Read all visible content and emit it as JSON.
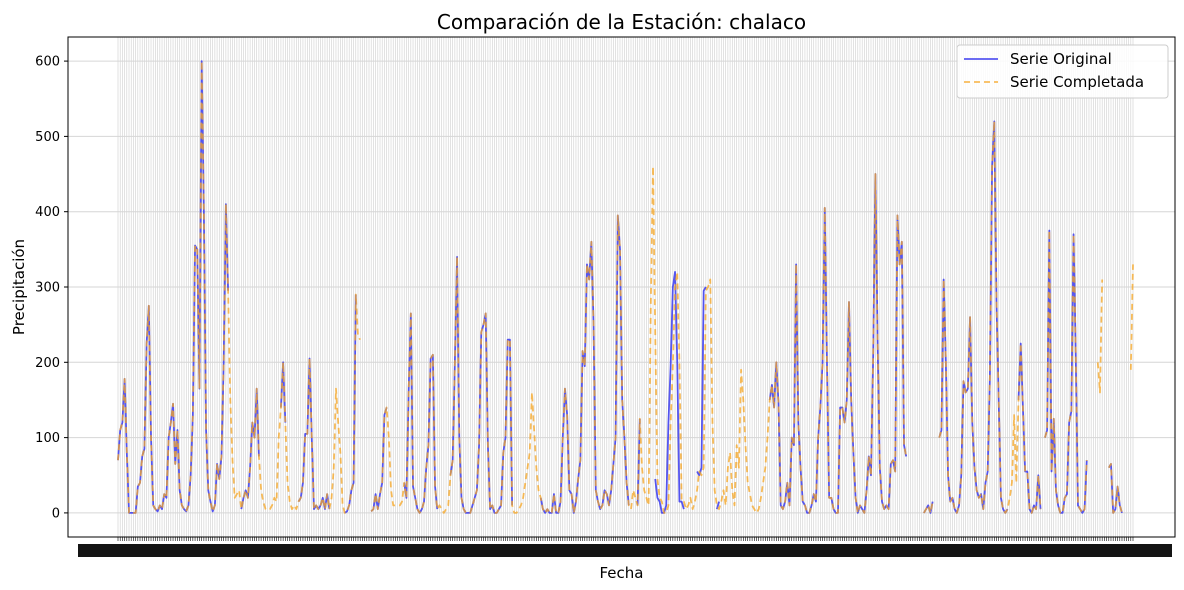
{
  "chart_data": {
    "type": "line",
    "title": "Comparación de la Estación: chalaco",
    "xlabel": "Fecha",
    "ylabel": "Precipitación",
    "ylim": [
      -32,
      632
    ],
    "yticks": [
      0,
      100,
      200,
      300,
      400,
      500,
      600
    ],
    "x_tick_labels_note": "",
    "grid": true,
    "legend_position": "top-right",
    "series": [
      {
        "name": "Serie Original",
        "color": "#3a3aee",
        "style": "solid",
        "values": [
          70,
          110,
          120,
          178,
          80,
          0,
          0,
          0,
          0,
          35,
          40,
          75,
          85,
          225,
          275,
          100,
          10,
          5,
          2,
          10,
          5,
          25,
          20,
          100,
          120,
          145,
          65,
          110,
          30,
          10,
          5,
          2,
          10,
          50,
          130,
          355,
          350,
          165,
          600,
          400,
          110,
          30,
          15,
          2,
          10,
          65,
          45,
          75,
          200,
          410,
          295,
          null,
          null,
          null,
          null,
          null,
          5,
          20,
          30,
          20,
          60,
          120,
          100,
          165,
          75,
          null,
          null,
          null,
          null,
          null,
          null,
          null,
          null,
          null,
          140,
          200,
          120,
          null,
          null,
          null,
          null,
          null,
          15,
          20,
          40,
          105,
          105,
          205,
          100,
          5,
          10,
          5,
          10,
          20,
          5,
          25,
          5,
          null,
          null,
          null,
          null,
          null,
          null,
          0,
          2,
          10,
          30,
          40,
          290,
          null,
          null,
          null,
          null,
          10,
          null,
          2,
          5,
          25,
          5,
          25,
          40,
          130,
          140,
          null,
          null,
          null,
          null,
          null,
          null,
          null,
          40,
          20,
          160,
          265,
          35,
          20,
          5,
          0,
          5,
          15,
          60,
          90,
          205,
          210,
          35,
          5,
          null,
          null,
          null,
          null,
          null,
          50,
          70,
          200,
          340,
          100,
          20,
          5,
          0,
          0,
          0,
          10,
          20,
          30,
          90,
          240,
          250,
          265,
          90,
          5,
          10,
          0,
          0,
          5,
          10,
          80,
          100,
          230,
          230,
          10,
          null,
          null,
          null,
          null,
          null,
          null,
          null,
          null,
          null,
          null,
          null,
          null,
          20,
          5,
          0,
          5,
          0,
          0,
          25,
          0,
          0,
          15,
          100,
          165,
          130,
          30,
          25,
          0,
          15,
          45,
          70,
          215,
          195,
          330,
          310,
          360,
          250,
          30,
          15,
          5,
          10,
          30,
          25,
          10,
          30,
          65,
          100,
          395,
          350,
          150,
          100,
          40,
          10,
          null,
          null,
          null,
          10,
          125,
          null,
          null,
          null,
          null,
          null,
          null,
          45,
          20,
          15,
          0,
          0,
          10,
          120,
          195,
          300,
          320,
          200,
          15,
          15,
          5,
          null,
          null,
          null,
          null,
          null,
          55,
          50,
          60,
          295,
          300,
          null,
          null,
          null,
          null,
          5,
          15,
          null,
          null,
          null,
          null,
          null,
          null,
          null,
          null,
          null,
          null,
          null,
          null,
          null,
          null,
          null,
          null,
          null,
          null,
          null,
          null,
          null,
          null,
          150,
          170,
          140,
          200,
          145,
          10,
          5,
          15,
          40,
          10,
          100,
          90,
          330,
          120,
          60,
          15,
          10,
          0,
          0,
          10,
          25,
          15,
          100,
          140,
          200,
          405,
          200,
          20,
          20,
          5,
          0,
          0,
          140,
          140,
          120,
          150,
          280,
          150,
          80,
          20,
          0,
          10,
          5,
          0,
          30,
          75,
          50,
          210,
          450,
          230,
          60,
          15,
          5,
          10,
          5,
          65,
          70,
          55,
          395,
          330,
          360,
          90,
          75,
          null,
          null,
          null,
          null,
          null,
          null,
          null,
          0,
          5,
          10,
          0,
          15,
          null,
          null,
          100,
          110,
          310,
          200,
          50,
          15,
          20,
          5,
          0,
          10,
          50,
          175,
          160,
          165,
          260,
          120,
          60,
          30,
          20,
          25,
          5,
          40,
          55,
          180,
          460,
          520,
          280,
          150,
          20,
          5,
          0,
          5,
          null,
          null,
          null,
          null,
          150,
          225,
          140,
          55,
          55,
          5,
          0,
          10,
          5,
          50,
          5,
          null,
          100,
          110,
          375,
          55,
          125,
          30,
          10,
          0,
          0,
          20,
          25,
          120,
          135,
          370,
          210,
          10,
          5,
          0,
          5,
          70,
          null,
          null,
          null,
          null,
          null,
          null,
          null,
          null,
          null,
          60,
          65,
          0,
          5,
          35,
          10,
          0
        ]
      },
      {
        "name": "Serie Completada",
        "color": "#f5a623",
        "style": "dashed",
        "values": [
          70,
          110,
          120,
          178,
          80,
          0,
          0,
          0,
          0,
          35,
          40,
          75,
          85,
          225,
          275,
          100,
          10,
          5,
          2,
          10,
          5,
          25,
          20,
          100,
          120,
          145,
          65,
          110,
          30,
          10,
          5,
          2,
          10,
          50,
          130,
          355,
          350,
          165,
          600,
          400,
          110,
          30,
          15,
          2,
          10,
          65,
          45,
          75,
          200,
          410,
          295,
          150,
          70,
          20,
          25,
          30,
          5,
          20,
          30,
          20,
          60,
          120,
          100,
          165,
          75,
          30,
          15,
          5,
          5,
          5,
          10,
          20,
          15,
          100,
          140,
          200,
          120,
          40,
          15,
          5,
          10,
          5,
          15,
          20,
          40,
          105,
          105,
          205,
          100,
          5,
          10,
          5,
          10,
          20,
          5,
          25,
          5,
          20,
          60,
          165,
          120,
          80,
          10,
          0,
          2,
          10,
          30,
          40,
          290,
          235,
          230,
          null,
          null,
          10,
          null,
          2,
          5,
          25,
          5,
          25,
          40,
          130,
          140,
          100,
          30,
          10,
          10,
          10,
          10,
          15,
          40,
          20,
          160,
          265,
          35,
          20,
          5,
          0,
          5,
          15,
          60,
          90,
          205,
          210,
          35,
          5,
          10,
          5,
          0,
          5,
          10,
          50,
          70,
          200,
          340,
          100,
          20,
          5,
          0,
          0,
          0,
          10,
          20,
          30,
          90,
          240,
          250,
          265,
          90,
          5,
          10,
          0,
          0,
          5,
          10,
          80,
          100,
          230,
          230,
          10,
          0,
          0,
          5,
          10,
          20,
          40,
          60,
          80,
          160,
          110,
          60,
          30,
          20,
          5,
          0,
          5,
          0,
          0,
          25,
          0,
          0,
          15,
          100,
          165,
          130,
          30,
          25,
          0,
          15,
          45,
          70,
          215,
          195,
          330,
          310,
          360,
          250,
          30,
          15,
          5,
          10,
          30,
          25,
          10,
          30,
          65,
          100,
          395,
          350,
          150,
          100,
          40,
          10,
          5,
          30,
          20,
          10,
          125,
          60,
          30,
          20,
          10,
          280,
          460,
          240,
          45,
          20,
          15,
          0,
          0,
          10,
          120,
          195,
          300,
          320,
          200,
          15,
          15,
          5,
          10,
          20,
          5,
          15,
          30,
          55,
          50,
          60,
          295,
          300,
          310,
          120,
          30,
          10,
          5,
          15,
          30,
          10,
          60,
          80,
          30,
          10,
          90,
          60,
          190,
          150,
          90,
          40,
          25,
          10,
          5,
          0,
          5,
          20,
          40,
          60,
          100,
          150,
          170,
          140,
          200,
          145,
          10,
          5,
          15,
          40,
          10,
          100,
          90,
          330,
          120,
          60,
          15,
          10,
          0,
          0,
          10,
          25,
          15,
          100,
          140,
          200,
          405,
          200,
          20,
          20,
          5,
          0,
          0,
          140,
          140,
          120,
          150,
          280,
          150,
          80,
          20,
          0,
          10,
          5,
          0,
          30,
          75,
          50,
          210,
          450,
          230,
          60,
          15,
          5,
          10,
          5,
          65,
          70,
          55,
          395,
          330,
          360,
          90,
          75,
          null,
          null,
          null,
          null,
          null,
          null,
          null,
          0,
          5,
          10,
          0,
          15,
          null,
          null,
          100,
          110,
          310,
          200,
          50,
          15,
          20,
          5,
          0,
          10,
          50,
          175,
          160,
          165,
          260,
          120,
          60,
          30,
          20,
          25,
          5,
          40,
          55,
          180,
          460,
          520,
          280,
          150,
          20,
          5,
          0,
          5,
          20,
          40,
          130,
          40,
          150,
          225,
          140,
          55,
          55,
          5,
          0,
          10,
          5,
          50,
          5,
          null,
          100,
          110,
          375,
          55,
          125,
          30,
          10,
          0,
          0,
          20,
          25,
          120,
          135,
          370,
          210,
          10,
          5,
          0,
          5,
          70,
          null,
          null,
          null,
          null,
          200,
          160,
          310,
          null,
          null,
          60,
          65,
          0,
          5,
          35,
          10,
          0,
          null,
          null,
          null,
          190,
          330
        ]
      }
    ]
  }
}
